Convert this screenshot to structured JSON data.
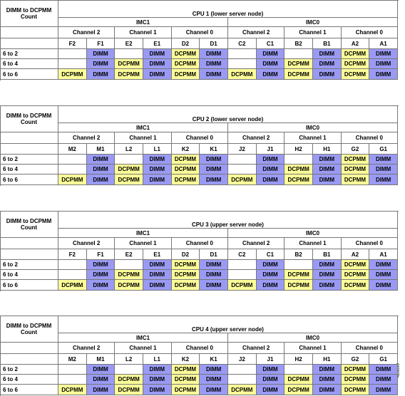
{
  "figure_id": "426690",
  "cell_colors": {
    "DIMM": "#9a9af5",
    "DCPMM": "#ffff99"
  },
  "tables": [
    {
      "row_header": "DIMM to DCPMM Count",
      "title": "CPU 1 (lower server node)",
      "imcs": [
        "IMC1",
        "IMC0"
      ],
      "channels": [
        "Channel 2",
        "Channel 1",
        "Channel 0",
        "Channel 2",
        "Channel 1",
        "Channel 0"
      ],
      "slots": [
        "F2",
        "F1",
        "E2",
        "E1",
        "D2",
        "D1",
        "C2",
        "C1",
        "B2",
        "B1",
        "A2",
        "A1"
      ],
      "rows": [
        {
          "label": "6 to 2",
          "cells": [
            null,
            "DIMM",
            null,
            "DIMM",
            "DCPMM",
            "DIMM",
            null,
            "DIMM",
            null,
            "DIMM",
            "DCPMM",
            "DIMM"
          ]
        },
        {
          "label": "6 to 4",
          "cells": [
            null,
            "DIMM",
            "DCPMM",
            "DIMM",
            "DCPMM",
            "DIMM",
            null,
            "DIMM",
            "DCPMM",
            "DIMM",
            "DCPMM",
            "DIMM"
          ]
        },
        {
          "label": "6 to 6",
          "cells": [
            "DCPMM",
            "DIMM",
            "DCPMM",
            "DIMM",
            "DCPMM",
            "DIMM",
            "DCPMM",
            "DIMM",
            "DCPMM",
            "DIMM",
            "DCPMM",
            "DIMM"
          ]
        }
      ]
    },
    {
      "row_header": "DIMM to DCPMM Count",
      "title": "CPU 2 (lower server node)",
      "imcs": [
        "IMC1",
        "IMC0"
      ],
      "channels": [
        "Channel 2",
        "Channel 1",
        "Channel 0",
        "Channel 2",
        "Channel 1",
        "Channel 0"
      ],
      "slots": [
        "M2",
        "M1",
        "L2",
        "L1",
        "K2",
        "K1",
        "J2",
        "J1",
        "H2",
        "H1",
        "G2",
        "G1"
      ],
      "rows": [
        {
          "label": "6 to 2",
          "cells": [
            null,
            "DIMM",
            null,
            "DIMM",
            "DCPMM",
            "DIMM",
            null,
            "DIMM",
            null,
            "DIMM",
            "DCPMM",
            "DIMM"
          ]
        },
        {
          "label": "6 to 4",
          "cells": [
            null,
            "DIMM",
            "DCPMM",
            "DIMM",
            "DCPMM",
            "DIMM",
            null,
            "DIMM",
            "DCPMM",
            "DIMM",
            "DCPMM",
            "DIMM"
          ]
        },
        {
          "label": "6 to 6",
          "cells": [
            "DCPMM",
            "DIMM",
            "DCPMM",
            "DIMM",
            "DCPMM",
            "DIMM",
            "DCPMM",
            "DIMM",
            "DCPMM",
            "DIMM",
            "DCPMM",
            "DIMM"
          ]
        }
      ]
    },
    {
      "row_header": "DIMM to DCPMM Count",
      "title": "CPU 3 (upper server node)",
      "imcs": [
        "IMC1",
        "IMC0"
      ],
      "channels": [
        "Channel 2",
        "Channel 1",
        "Channel 0",
        "Channel 2",
        "Channel 1",
        "Channel 0"
      ],
      "slots": [
        "F2",
        "F1",
        "E2",
        "E1",
        "D2",
        "D1",
        "C2",
        "C1",
        "B2",
        "B1",
        "A2",
        "A1"
      ],
      "rows": [
        {
          "label": "6 to 2",
          "cells": [
            null,
            "DIMM",
            null,
            "DIMM",
            "DCPMM",
            "DIMM",
            null,
            "DIMM",
            null,
            "DIMM",
            "DCPMM",
            "DIMM"
          ]
        },
        {
          "label": "6 to 4",
          "cells": [
            null,
            "DIMM",
            "DCPMM",
            "DIMM",
            "DCPMM",
            "DIMM",
            null,
            "DIMM",
            "DCPMM",
            "DIMM",
            "DCPMM",
            "DIMM"
          ]
        },
        {
          "label": "6 to 6",
          "cells": [
            "DCPMM",
            "DIMM",
            "DCPMM",
            "DIMM",
            "DCPMM",
            "DIMM",
            "DCPMM",
            "DIMM",
            "DCPMM",
            "DIMM",
            "DCPMM",
            "DIMM"
          ]
        }
      ]
    },
    {
      "row_header": "DIMM to DCPMM Count",
      "title": "CPU 4 (upper server node)",
      "imcs": [
        "IMC1",
        "IMC0"
      ],
      "channels": [
        "Channel 2",
        "Channel 1",
        "Channel 0",
        "Channel 2",
        "Channel 1",
        "Channel 0"
      ],
      "slots": [
        "M2",
        "M1",
        "L2",
        "L1",
        "K2",
        "K1",
        "J2",
        "J1",
        "H2",
        "H1",
        "G2",
        "G1"
      ],
      "rows": [
        {
          "label": "6 to 2",
          "cells": [
            null,
            "DIMM",
            null,
            "DIMM",
            "DCPMM",
            "DIMM",
            null,
            "DIMM",
            null,
            "DIMM",
            "DCPMM",
            "DIMM"
          ]
        },
        {
          "label": "6 to 4",
          "cells": [
            null,
            "DIMM",
            "DCPMM",
            "DIMM",
            "DCPMM",
            "DIMM",
            null,
            "DIMM",
            "DCPMM",
            "DIMM",
            "DCPMM",
            "DIMM"
          ]
        },
        {
          "label": "6 to 6",
          "cells": [
            "DCPMM",
            "DIMM",
            "DCPMM",
            "DIMM",
            "DCPMM",
            "DIMM",
            "DCPMM",
            "DIMM",
            "DCPMM",
            "DIMM",
            "DCPMM",
            "DIMM"
          ]
        }
      ]
    }
  ]
}
